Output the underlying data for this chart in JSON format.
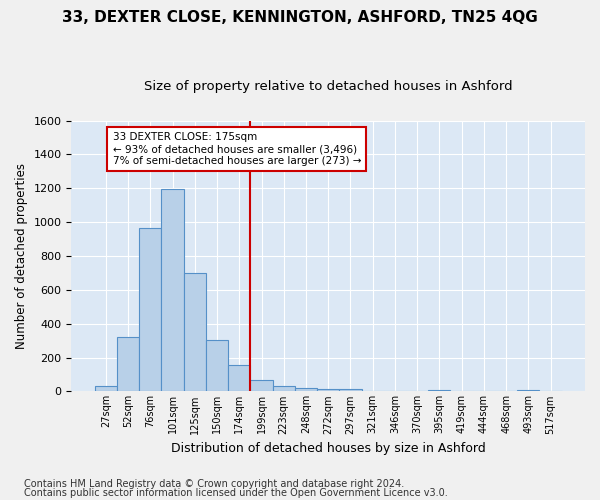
{
  "title1": "33, DEXTER CLOSE, KENNINGTON, ASHFORD, TN25 4QG",
  "title2": "Size of property relative to detached houses in Ashford",
  "xlabel": "Distribution of detached houses by size in Ashford",
  "ylabel": "Number of detached properties",
  "bar_values": [
    30,
    320,
    965,
    1195,
    700,
    305,
    155,
    70,
    30,
    20,
    15,
    15,
    0,
    0,
    0,
    10,
    0,
    0,
    0,
    10,
    0
  ],
  "bar_labels": [
    "27sqm",
    "52sqm",
    "76sqm",
    "101sqm",
    "125sqm",
    "150sqm",
    "174sqm",
    "199sqm",
    "223sqm",
    "248sqm",
    "272sqm",
    "297sqm",
    "321sqm",
    "346sqm",
    "370sqm",
    "395sqm",
    "419sqm",
    "444sqm",
    "468sqm",
    "493sqm",
    "517sqm"
  ],
  "bar_width": 1.0,
  "bar_color": "#b8d0e8",
  "bar_edge_color": "#5590c8",
  "bar_edge_width": 0.8,
  "vline_color": "#cc0000",
  "annotation_text": "33 DEXTER CLOSE: 175sqm\n← 93% of detached houses are smaller (3,496)\n7% of semi-detached houses are larger (273) →",
  "annotation_box_color": "#ffffff",
  "annotation_box_edge_color": "#cc0000",
  "ylim": [
    0,
    1600
  ],
  "yticks": [
    0,
    200,
    400,
    600,
    800,
    1000,
    1200,
    1400,
    1600
  ],
  "footer1": "Contains HM Land Registry data © Crown copyright and database right 2024.",
  "footer2": "Contains public sector information licensed under the Open Government Licence v3.0.",
  "bg_color": "#dce8f5",
  "grid_color": "#ffffff",
  "title1_fontsize": 11,
  "title2_fontsize": 9.5,
  "xlabel_fontsize": 9,
  "ylabel_fontsize": 8.5,
  "footer_fontsize": 7
}
